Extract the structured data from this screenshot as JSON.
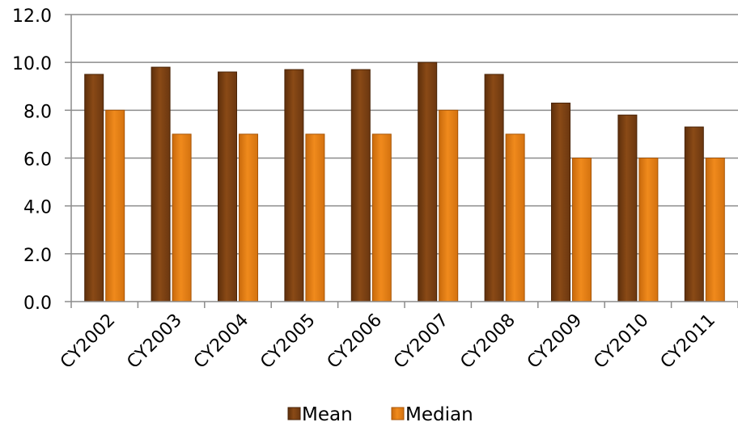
{
  "chart_data": {
    "type": "bar",
    "categories": [
      "CY2002",
      "CY2003",
      "CY2004",
      "CY2005",
      "CY2006",
      "CY2007",
      "CY2008",
      "CY2009",
      "CY2010",
      "CY2011"
    ],
    "series": [
      {
        "name": "Mean",
        "color": "#7B3F10",
        "values": [
          9.5,
          9.8,
          9.6,
          9.7,
          9.7,
          10.0,
          9.5,
          8.3,
          7.8,
          7.3
        ]
      },
      {
        "name": "Median",
        "color": "#E07B12",
        "values": [
          8.0,
          7.0,
          7.0,
          7.0,
          7.0,
          8.0,
          7.0,
          6.0,
          6.0,
          6.0
        ]
      }
    ],
    "ylim": [
      0,
      12
    ],
    "yticks": [
      "0.0",
      "2.0",
      "4.0",
      "6.0",
      "8.0",
      "10.0",
      "12.0"
    ],
    "ytick_values": [
      0,
      2,
      4,
      6,
      8,
      10,
      12
    ],
    "grid": true,
    "legend_position": "bottom"
  }
}
